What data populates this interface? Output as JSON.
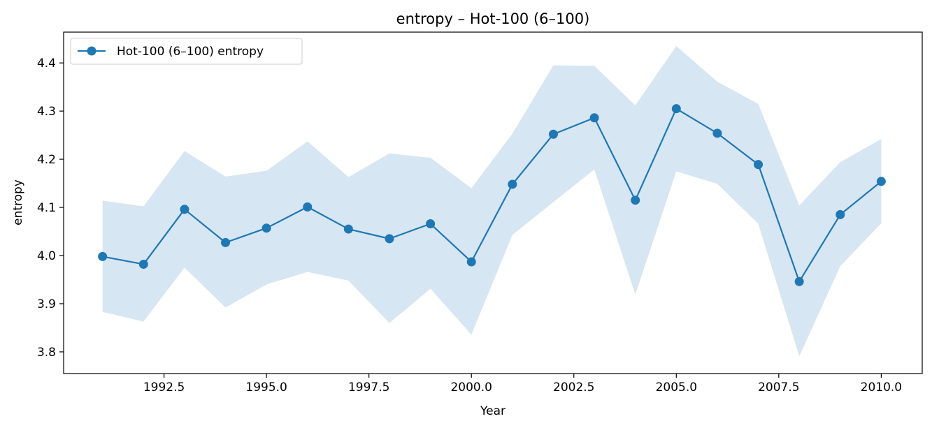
{
  "chart_data": {
    "type": "line",
    "title": "entropy – Hot-100 (6–100)",
    "xlabel": "Year",
    "ylabel": "entropy",
    "xlim": [
      1990.05,
      2011.0
    ],
    "ylim": [
      3.755,
      4.464
    ],
    "x_ticks": [
      1992.5,
      1995.0,
      1997.5,
      2000.0,
      2002.5,
      2005.0,
      2007.5,
      2010.0
    ],
    "x_tick_labels": [
      "1992.5",
      "1995.0",
      "1997.5",
      "2000.0",
      "2002.5",
      "2005.0",
      "2007.5",
      "2010.0"
    ],
    "y_ticks": [
      3.8,
      3.9,
      4.0,
      4.1,
      4.2,
      4.3,
      4.4
    ],
    "y_tick_labels": [
      "3.8",
      "3.9",
      "4.0",
      "4.1",
      "4.2",
      "4.3",
      "4.4"
    ],
    "grid": false,
    "legend_position": "top-left",
    "x": [
      1991,
      1992,
      1993,
      1994,
      1995,
      1996,
      1997,
      1998,
      1999,
      2000,
      2001,
      2002,
      2003,
      2004,
      2005,
      2006,
      2007,
      2008,
      2009,
      2010
    ],
    "series": [
      {
        "name": "Hot-100 (6–100) entropy",
        "color": "#1f77b4",
        "values": [
          3.998,
          3.982,
          4.096,
          4.027,
          4.057,
          4.101,
          4.055,
          4.035,
          4.066,
          3.987,
          4.148,
          4.252,
          4.286,
          4.115,
          4.305,
          4.254,
          4.189,
          3.946,
          4.085,
          4.154
        ],
        "band_upper": [
          4.114,
          4.102,
          4.217,
          4.164,
          4.176,
          4.237,
          4.163,
          4.212,
          4.203,
          4.14,
          4.253,
          4.395,
          4.394,
          4.312,
          4.435,
          4.361,
          4.315,
          4.104,
          4.194,
          4.242
        ],
        "band_lower": [
          3.883,
          3.863,
          3.975,
          3.892,
          3.94,
          3.966,
          3.948,
          3.86,
          3.931,
          3.836,
          4.043,
          4.111,
          4.179,
          3.919,
          4.175,
          4.149,
          4.066,
          3.791,
          3.978,
          4.067
        ],
        "band_color": "#d6e6f2"
      }
    ]
  }
}
